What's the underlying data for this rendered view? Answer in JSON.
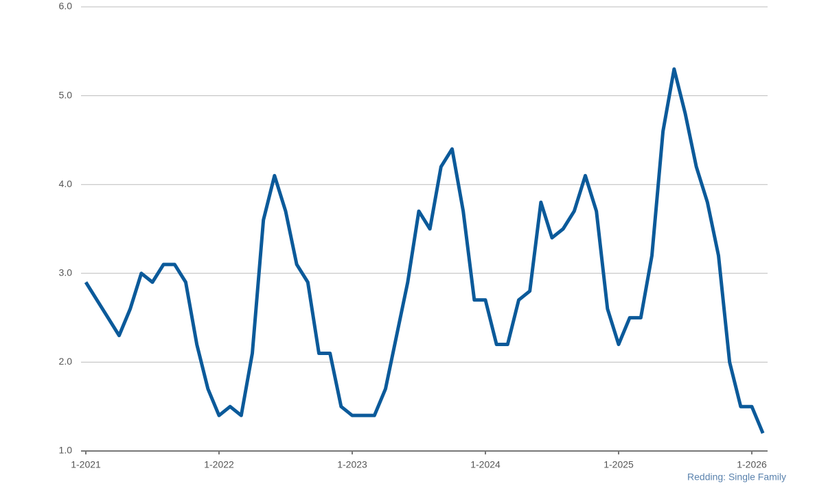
{
  "chart_data": {
    "type": "line",
    "categories": [
      "1-2021",
      null,
      null,
      null,
      null,
      null,
      null,
      null,
      null,
      null,
      null,
      null,
      "1-2022",
      null,
      null,
      null,
      null,
      null,
      null,
      null,
      null,
      null,
      null,
      null,
      "1-2023",
      null,
      null,
      null,
      null,
      null,
      null,
      null,
      null,
      null,
      null,
      null,
      "1-2024",
      null,
      null,
      null,
      null,
      null,
      null,
      null,
      null,
      null,
      null,
      null,
      "1-2025",
      null,
      null,
      null,
      null,
      null,
      null,
      null,
      null,
      null,
      null,
      null,
      "1-2026",
      null
    ],
    "series": [
      {
        "name": "Redding: Single Family",
        "color": "#0b5a9a",
        "values": [
          2.9,
          2.7,
          2.5,
          2.3,
          2.6,
          3.0,
          2.9,
          3.1,
          3.1,
          2.9,
          2.2,
          1.7,
          1.4,
          1.5,
          1.4,
          2.1,
          3.6,
          4.1,
          3.7,
          3.1,
          2.9,
          2.1,
          2.1,
          1.5,
          1.4,
          1.4,
          1.4,
          1.7,
          2.3,
          2.9,
          3.7,
          3.5,
          4.2,
          4.4,
          3.7,
          2.7,
          2.7,
          2.2,
          2.2,
          2.7,
          2.8,
          3.8,
          3.4,
          3.5,
          3.7,
          4.1,
          3.7,
          2.6,
          2.2,
          2.5,
          2.5,
          3.2,
          4.6,
          5.3,
          4.8,
          4.2,
          3.8,
          3.2,
          2.0,
          1.5,
          1.5,
          1.2
        ]
      }
    ],
    "ylim": [
      1.0,
      6.0
    ],
    "yticks": [
      {
        "value": 1,
        "label": "1.0"
      },
      {
        "value": 2,
        "label": "2.0"
      },
      {
        "value": 3,
        "label": "3.0"
      },
      {
        "value": 4,
        "label": "4.0"
      },
      {
        "value": 5,
        "label": "5.0"
      },
      {
        "value": 6,
        "label": "6.0"
      }
    ],
    "grid": true
  }
}
